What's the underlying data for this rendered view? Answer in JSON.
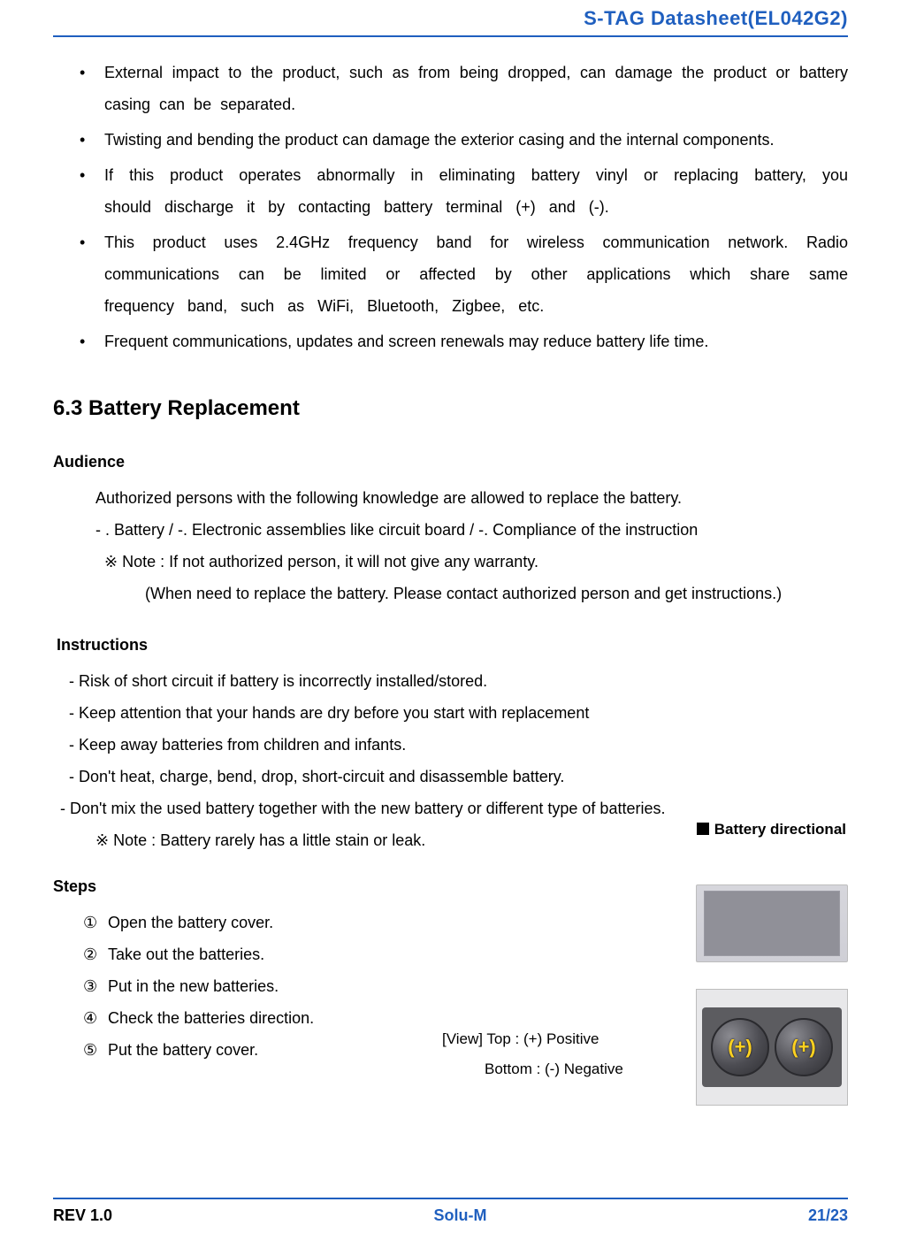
{
  "header": {
    "title": "S-TAG Datasheet(EL042G2)"
  },
  "bullets": [
    "External impact to the product, such as from being dropped, can damage the product or battery casing can be separated.",
    "Twisting and bending the product can damage the exterior casing and the internal components.",
    "If this product operates abnormally in eliminating battery vinyl or replacing battery, you should discharge it by contacting battery terminal (+) and (-).",
    "This product uses 2.4GHz frequency band for wireless communication network. Radio communications can be limited or affected by other applications which share same frequency band, such as WiFi, Bluetooth, Zigbee, etc.",
    "Frequent communications, updates and screen renewals may reduce battery life time."
  ],
  "section": {
    "number": "6.3",
    "title": "Battery Replacement"
  },
  "audience": {
    "head": "Audience",
    "lines": {
      "l1": "Authorized persons with the following knowledge are allowed to replace the battery.",
      "l2": "- .  Battery  /  -.  Electronic assemblies like circuit board /  -. Compliance of the instruction",
      "l3": "※  Note : If not authorized person, it will not give any warranty.",
      "l4": "(When need to replace the battery. Please contact authorized person and get instructions.)"
    }
  },
  "instructions": {
    "head": "Instructions",
    "items": [
      "- Risk of short circuit if battery is incorrectly installed/stored.",
      "- Keep attention that your hands are dry before you start with replacement",
      "- Keep away batteries from children and infants.",
      "- Don't heat, charge, bend, drop, short-circuit and disassemble battery.",
      "-  Don't mix the used battery together with the new battery or different type of batteries."
    ],
    "note": "※   Note : Battery rarely has a little stain or leak."
  },
  "battery_directional_label": "Battery directional",
  "steps": {
    "head": "Steps",
    "items": [
      "Open the battery cover.",
      "Take out the batteries.",
      "Put in the new batteries.",
      "Check the batteries direction.",
      "Put the battery cover."
    ],
    "markers": [
      "①",
      "②",
      "③",
      "④",
      "⑤"
    ]
  },
  "view": {
    "line1": "[View] Top      :  (+) Positive",
    "line2": "Bottom  :  (-) Negative"
  },
  "battery_cells": {
    "left": "(+)",
    "right": "(+)"
  },
  "footer": {
    "rev": "REV 1.0",
    "company": "Solu-M",
    "page": "21/23"
  },
  "colors": {
    "accent": "#1f5fbf",
    "cell_label": "#ffd21f"
  }
}
